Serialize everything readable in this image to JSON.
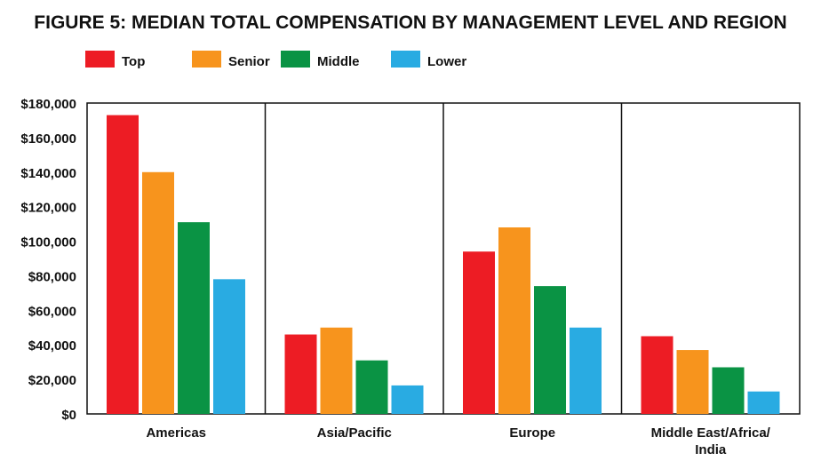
{
  "chart_data": {
    "type": "bar",
    "title": "FIGURE 5: MEDIAN TOTAL COMPENSATION BY MANAGEMENT LEVEL AND REGION",
    "xlabel": "",
    "ylabel": "",
    "ylim": [
      0,
      180000
    ],
    "y_ticks": [
      "$0",
      "$20,000",
      "$40,000",
      "$60,000",
      "$80,000",
      "$100,000",
      "$120,000",
      "$140,000",
      "$160,000",
      "$180,000"
    ],
    "categories": [
      [
        "Americas"
      ],
      [
        "Asia/Pacific"
      ],
      [
        "Europe"
      ],
      [
        "Middle East/Africa/",
        "India"
      ]
    ],
    "series": [
      {
        "name": "Top",
        "color": "#ed1c24",
        "values": [
          173000,
          46000,
          94000,
          45000
        ]
      },
      {
        "name": "Senior",
        "color": "#f7941d",
        "values": [
          140000,
          50000,
          108000,
          37000
        ]
      },
      {
        "name": "Middle",
        "color": "#0a9344",
        "values": [
          111000,
          31000,
          74000,
          27000
        ]
      },
      {
        "name": "Lower",
        "color": "#29abe2",
        "values": [
          78000,
          16500,
          50000,
          13000
        ]
      }
    ],
    "legend": "top-left",
    "grid": false
  }
}
